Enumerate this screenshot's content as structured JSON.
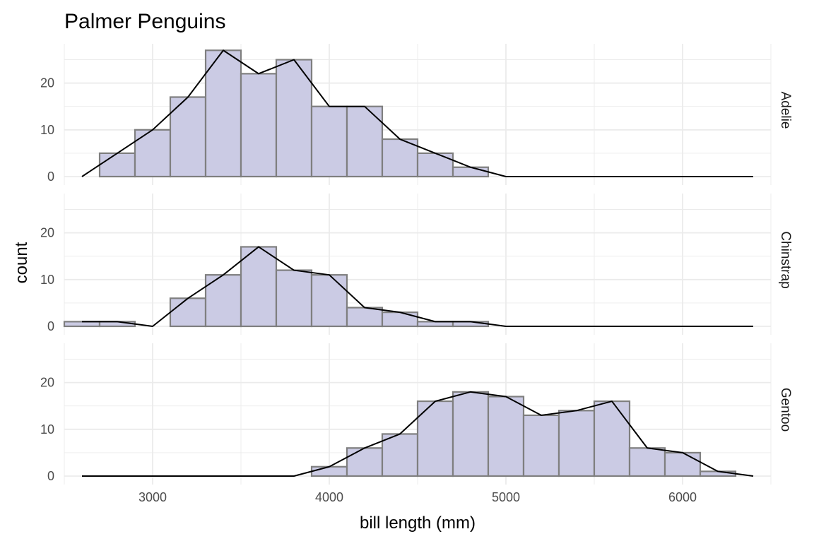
{
  "chart_data": {
    "type": "bar",
    "title": "Palmer Penguins",
    "xlabel": "bill length (mm)",
    "ylabel": "count",
    "xlim": [
      2500,
      6500
    ],
    "ylim": [
      0,
      28
    ],
    "x_ticks": [
      3000,
      4000,
      5000,
      6000
    ],
    "y_ticks": [
      0,
      10,
      20
    ],
    "grid": true,
    "bin_width": 200,
    "bin_starts": [
      2500,
      2700,
      2900,
      3100,
      3300,
      3500,
      3700,
      3900,
      4100,
      4300,
      4500,
      4700,
      4900,
      5100,
      5300,
      5500,
      5700,
      5900,
      6100,
      6300
    ],
    "line_x": [
      2600,
      2800,
      3000,
      3200,
      3400,
      3600,
      3800,
      4000,
      4200,
      4400,
      4600,
      4800,
      5000,
      5200,
      5400,
      5600,
      5800,
      6000,
      6200,
      6400
    ],
    "colors": {
      "bar_fill": "#cbcbe4",
      "bar_stroke": "#7f7f7f",
      "line": "#000000",
      "grid": "#ebebeb"
    },
    "panels": [
      {
        "label": "Adelie",
        "values": [
          0,
          5,
          10,
          17,
          27,
          22,
          25,
          15,
          15,
          8,
          5,
          2,
          0,
          0,
          0,
          0,
          0,
          0,
          0,
          0
        ]
      },
      {
        "label": "Chinstrap",
        "values": [
          1,
          1,
          0,
          6,
          11,
          17,
          12,
          11,
          4,
          3,
          1,
          1,
          0,
          0,
          0,
          0,
          0,
          0,
          0,
          0
        ]
      },
      {
        "label": "Gentoo",
        "values": [
          0,
          0,
          0,
          0,
          0,
          0,
          0,
          2,
          6,
          9,
          16,
          18,
          17,
          13,
          14,
          16,
          6,
          5,
          1,
          0
        ]
      }
    ]
  }
}
